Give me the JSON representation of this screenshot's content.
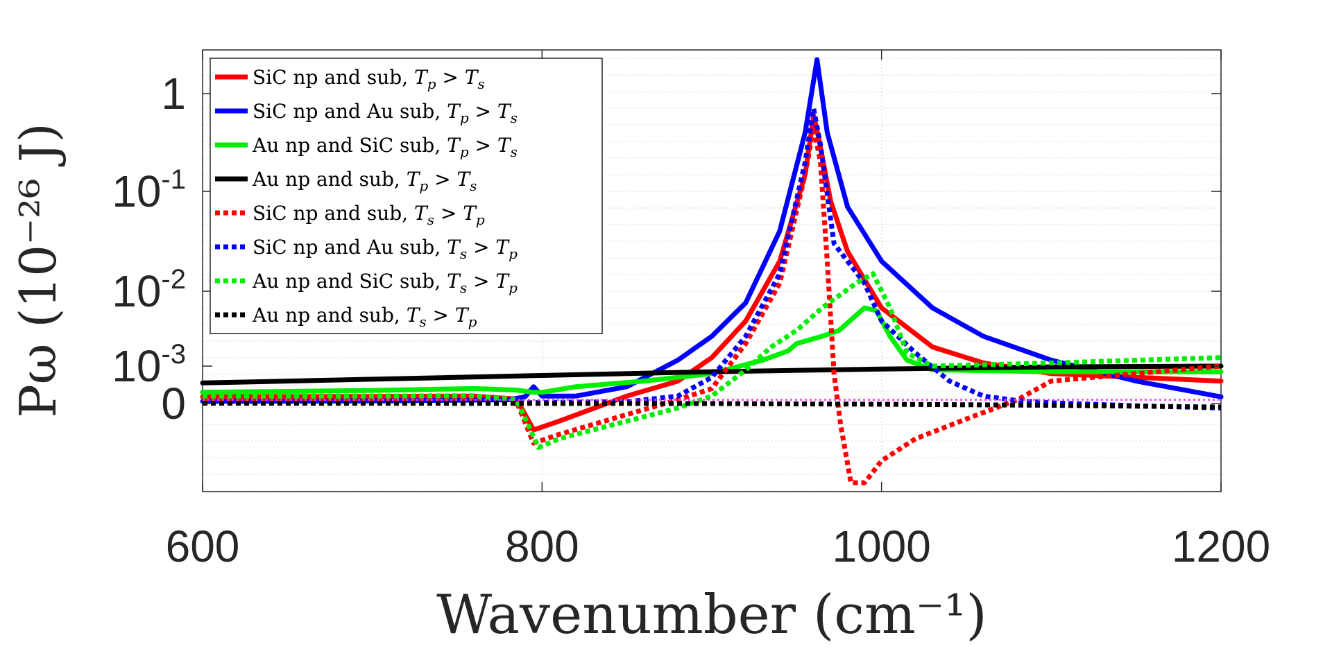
{
  "chart_data": {
    "type": "line",
    "xlabel": "Wavenumber (cm⁻¹)",
    "ylabel": "Pω (10⁻²⁶ J)",
    "xlim": [
      600,
      1200
    ],
    "x_ticks": [
      600,
      800,
      1000,
      1200
    ],
    "x_tick_labels": [
      "600",
      "800",
      "1000",
      "1200"
    ],
    "y_scale": "symlog",
    "y_ticks": [
      0,
      0.001,
      0.01,
      0.1,
      1
    ],
    "y_tick_labels": [
      {
        "base": "0",
        "exp": ""
      },
      {
        "base": "10",
        "exp": "-3"
      },
      {
        "base": "10",
        "exp": "-2"
      },
      {
        "base": "10",
        "exp": "-1"
      },
      {
        "base": "1",
        "exp": ""
      }
    ],
    "grid": true,
    "legend_position": "top-left",
    "series": [
      {
        "name": "SiC np and sub, Tp > Ts",
        "color": "#ff0000",
        "style": "solid",
        "points": [
          [
            600,
            0.00018
          ],
          [
            700,
            0.00019
          ],
          [
            760,
            0.0002
          ],
          [
            785,
            0.00012
          ],
          [
            795,
            -0.0006
          ],
          [
            810,
            -0.0004
          ],
          [
            850,
            0.0002
          ],
          [
            880,
            0.0006
          ],
          [
            900,
            0.0013
          ],
          [
            920,
            0.004
          ],
          [
            940,
            0.02
          ],
          [
            955,
            0.15
          ],
          [
            960,
            0.6
          ],
          [
            963,
            0.35
          ],
          [
            970,
            0.08
          ],
          [
            980,
            0.025
          ],
          [
            1000,
            0.006
          ],
          [
            1030,
            0.0018
          ],
          [
            1060,
            0.0011
          ],
          [
            1100,
            0.0008
          ],
          [
            1150,
            0.0007
          ],
          [
            1200,
            0.0006
          ]
        ]
      },
      {
        "name": "SiC np and Au sub, Tp > Ts",
        "color": "#0000ff",
        "style": "solid",
        "points": [
          [
            600,
            6e-05
          ],
          [
            700,
            7e-05
          ],
          [
            780,
            0.0001
          ],
          [
            790,
            0.00018
          ],
          [
            795,
            0.00045
          ],
          [
            800,
            0.0002
          ],
          [
            820,
            0.0002
          ],
          [
            850,
            0.00045
          ],
          [
            880,
            0.0012
          ],
          [
            900,
            0.0025
          ],
          [
            920,
            0.007
          ],
          [
            940,
            0.04
          ],
          [
            955,
            0.4
          ],
          [
            962,
            1.9
          ],
          [
            968,
            0.4
          ],
          [
            980,
            0.07
          ],
          [
            1000,
            0.02
          ],
          [
            1030,
            0.006
          ],
          [
            1060,
            0.0025
          ],
          [
            1100,
            0.0012
          ],
          [
            1150,
            0.0006
          ],
          [
            1200,
            0.00018
          ]
        ]
      },
      {
        "name": "Au np and SiC sub, Tp > Ts",
        "color": "#00ee00",
        "style": "solid",
        "points": [
          [
            600,
            0.0003
          ],
          [
            700,
            0.00035
          ],
          [
            760,
            0.0004
          ],
          [
            785,
            0.00036
          ],
          [
            795,
            0.0003
          ],
          [
            800,
            0.0003
          ],
          [
            820,
            0.00045
          ],
          [
            860,
            0.0006
          ],
          [
            900,
            0.0008
          ],
          [
            930,
            0.0012
          ],
          [
            945,
            0.0016
          ],
          [
            950,
            0.002
          ],
          [
            965,
            0.0025
          ],
          [
            975,
            0.003
          ],
          [
            990,
            0.006
          ],
          [
            997,
            0.0055
          ],
          [
            1005,
            0.0025
          ],
          [
            1015,
            0.0012
          ],
          [
            1030,
            0.0009
          ],
          [
            1100,
            0.00085
          ],
          [
            1200,
            0.00085
          ]
        ]
      },
      {
        "name": "Au np and sub, Tp > Ts",
        "color": "#000000",
        "style": "solid",
        "points": [
          [
            600,
            0.00055
          ],
          [
            700,
            0.00065
          ],
          [
            800,
            0.00075
          ],
          [
            900,
            0.00085
          ],
          [
            1000,
            0.00092
          ],
          [
            1100,
            0.00098
          ],
          [
            1200,
            0.001
          ]
        ]
      },
      {
        "name": "SiC np and sub, Ts > Tp",
        "color": "#ff0000",
        "style": "dotted",
        "points": [
          [
            600,
            0.0001
          ],
          [
            700,
            0.00011
          ],
          [
            760,
            0.00012
          ],
          [
            785,
            5e-05
          ],
          [
            795,
            -0.0009
          ],
          [
            810,
            -0.0007
          ],
          [
            850,
            -0.00025
          ],
          [
            880,
            0.0001
          ],
          [
            900,
            0.0004
          ],
          [
            920,
            0.002
          ],
          [
            940,
            0.012
          ],
          [
            955,
            0.15
          ],
          [
            960,
            0.45
          ],
          [
            964,
            0.2
          ],
          [
            968,
            0.02
          ],
          [
            972,
            0.0008
          ],
          [
            976,
            -0.0005
          ],
          [
            982,
            -0.0018
          ],
          [
            990,
            -0.0018
          ],
          [
            1000,
            -0.0013
          ],
          [
            1020,
            -0.0008
          ],
          [
            1050,
            -0.00035
          ],
          [
            1080,
            0.0001
          ],
          [
            1100,
            0.0006
          ],
          [
            1150,
            0.0008
          ],
          [
            1200,
            0.001
          ]
        ]
      },
      {
        "name": "SiC np and Au sub, Ts > Tp",
        "color": "#0000ff",
        "style": "dotted",
        "points": [
          [
            600,
            1e-05
          ],
          [
            700,
            1e-05
          ],
          [
            790,
            2e-05
          ],
          [
            800,
            3e-05
          ],
          [
            850,
            5e-05
          ],
          [
            880,
            0.0002
          ],
          [
            900,
            0.0007
          ],
          [
            920,
            0.0025
          ],
          [
            940,
            0.015
          ],
          [
            955,
            0.2
          ],
          [
            960,
            0.7
          ],
          [
            964,
            0.3
          ],
          [
            972,
            0.03
          ],
          [
            990,
            0.012
          ],
          [
            1000,
            0.004
          ],
          [
            1020,
            0.0015
          ],
          [
            1040,
            0.0006
          ],
          [
            1060,
            0.0002
          ],
          [
            1080,
            8e-05
          ],
          [
            1100,
            2e-05
          ],
          [
            1150,
            -5e-05
          ],
          [
            1200,
            -0.0001
          ]
        ]
      },
      {
        "name": "Au np and SiC sub, Ts > Tp",
        "color": "#00ee00",
        "style": "dotted",
        "points": [
          [
            600,
            0.0002
          ],
          [
            700,
            0.0002
          ],
          [
            760,
            0.00021
          ],
          [
            785,
            0.0001
          ],
          [
            798,
            -0.001
          ],
          [
            810,
            -0.0008
          ],
          [
            850,
            -0.0004
          ],
          [
            880,
            -0.0001
          ],
          [
            900,
            0.0002
          ],
          [
            920,
            0.0009
          ],
          [
            935,
            0.0018
          ],
          [
            950,
            0.003
          ],
          [
            965,
            0.006
          ],
          [
            985,
            0.012
          ],
          [
            995,
            0.015
          ],
          [
            1005,
            0.006
          ],
          [
            1015,
            0.0015
          ],
          [
            1030,
            0.001
          ],
          [
            1100,
            0.0011
          ],
          [
            1200,
            0.0013
          ]
        ]
      },
      {
        "name": "Au np and sub, Ts > Tp",
        "color": "#000000",
        "style": "dotted",
        "points": [
          [
            600,
            1e-05
          ],
          [
            700,
            8e-06
          ],
          [
            800,
            4e-06
          ],
          [
            900,
            0.0
          ],
          [
            1000,
            -1.5e-05
          ],
          [
            1100,
            -4e-05
          ],
          [
            1200,
            -8e-05
          ]
        ]
      },
      {
        "name": "",
        "color": "#ff33ff",
        "style": "dotted-thin",
        "points": [
          [
            600,
            0.0001
          ],
          [
            700,
            0.0001
          ],
          [
            800,
            0.0001
          ],
          [
            900,
            0.0001
          ],
          [
            1000,
            0.0001
          ],
          [
            1100,
            0.0001
          ],
          [
            1200,
            0.0001
          ]
        ]
      }
    ],
    "legend": [
      {
        "prefix": "SiC np and sub, ",
        "ta": "p",
        "tb": "s",
        "color": "#ff0000",
        "style": "solid"
      },
      {
        "prefix": "SiC np and Au sub, ",
        "ta": "p",
        "tb": "s",
        "color": "#0000ff",
        "style": "solid"
      },
      {
        "prefix": "Au np and SiC sub, ",
        "ta": "p",
        "tb": "s",
        "color": "#00ee00",
        "style": "solid"
      },
      {
        "prefix": "Au np and sub, ",
        "ta": "p",
        "tb": "s",
        "color": "#000000",
        "style": "solid"
      },
      {
        "prefix": "SiC np and sub, ",
        "ta": "s",
        "tb": "p",
        "color": "#ff0000",
        "style": "dotted"
      },
      {
        "prefix": "SiC np and Au sub, ",
        "ta": "s",
        "tb": "p",
        "color": "#0000ff",
        "style": "dotted"
      },
      {
        "prefix": "Au np and SiC sub, ",
        "ta": "s",
        "tb": "p",
        "color": "#00ee00",
        "style": "dotted"
      },
      {
        "prefix": "Au np and sub, ",
        "ta": "s",
        "tb": "p",
        "color": "#000000",
        "style": "dotted"
      }
    ]
  }
}
